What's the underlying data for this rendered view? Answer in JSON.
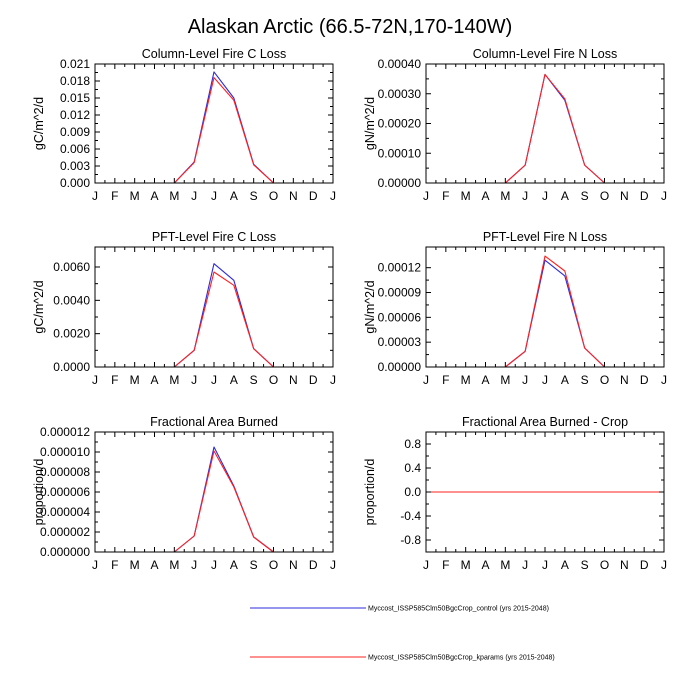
{
  "figure": {
    "title": "Alaskan Arctic (66.5-72N,170-140W)"
  },
  "colors": {
    "control": "#2b2bdc",
    "kparams": "#ff2020",
    "axes": "#000000",
    "background": "#ffffff"
  },
  "legend": {
    "entries": [
      {
        "name": "Myccost_ISSP585Clm50BgcCrop_control (yrs 2015-2048)",
        "color_key": "control"
      },
      {
        "name": "Myccost_ISSP585Clm50BgcCrop_kparams (yrs 2015-2048)",
        "color_key": "kparams"
      }
    ]
  },
  "chart_data": [
    {
      "type": "line",
      "title": "Column-Level Fire C Loss",
      "ylabel": "gC/m^2/d",
      "xlabel": "",
      "categories": [
        "J",
        "F",
        "M",
        "A",
        "M",
        "J",
        "J",
        "A",
        "S",
        "O",
        "N",
        "D",
        "J"
      ],
      "ylim": [
        0,
        0.021
      ],
      "yticks": [
        0,
        0.003,
        0.006,
        0.009,
        0.012,
        0.015,
        0.018,
        0.021
      ],
      "ytick_labels": [
        "0.000",
        "0.003",
        "0.006",
        "0.009",
        "0.012",
        "0.015",
        "0.018",
        "0.021"
      ],
      "series": [
        {
          "name": "Myccost_ISSP585Clm50BgcCrop_control (yrs 2015-2048)",
          "color_key": "control",
          "values": [
            0,
            0,
            0,
            0,
            0,
            0.0037,
            0.0196,
            0.015,
            0.0033,
            0,
            0,
            0,
            0
          ]
        },
        {
          "name": "Myccost_ISSP585Clm50BgcCrop_kparams (yrs 2015-2048)",
          "color_key": "kparams",
          "values": [
            0,
            0,
            0,
            0,
            0,
            0.0036,
            0.0186,
            0.0146,
            0.0032,
            0,
            0,
            0,
            0
          ]
        }
      ]
    },
    {
      "type": "line",
      "title": "Column-Level Fire N Loss",
      "ylabel": "gN/m^2/d",
      "xlabel": "",
      "categories": [
        "J",
        "F",
        "M",
        "A",
        "M",
        "J",
        "J",
        "A",
        "S",
        "O",
        "N",
        "D",
        "J"
      ],
      "ylim": [
        0,
        0.0004
      ],
      "yticks": [
        0,
        0.0001,
        0.0002,
        0.0003,
        0.0004
      ],
      "ytick_labels": [
        "0.00000",
        "0.00010",
        "0.00020",
        "0.00030",
        "0.00040"
      ],
      "series": [
        {
          "name": "Myccost_ISSP585Clm50BgcCrop_control (yrs 2015-2048)",
          "color_key": "control",
          "values": [
            0,
            0,
            0,
            0,
            0,
            6e-05,
            0.000365,
            0.000278,
            6e-05,
            0,
            0,
            0,
            0
          ]
        },
        {
          "name": "Myccost_ISSP585Clm50BgcCrop_kparams (yrs 2015-2048)",
          "color_key": "kparams",
          "values": [
            0,
            0,
            0,
            0,
            0,
            6e-05,
            0.000365,
            0.000283,
            6e-05,
            0,
            0,
            0,
            0
          ]
        }
      ]
    },
    {
      "type": "line",
      "title": "PFT-Level Fire C Loss",
      "ylabel": "gC/m^2/d",
      "xlabel": "",
      "categories": [
        "J",
        "F",
        "M",
        "A",
        "M",
        "J",
        "J",
        "A",
        "S",
        "O",
        "N",
        "D",
        "J"
      ],
      "ylim": [
        0,
        0.0072
      ],
      "yticks": [
        0,
        0.002,
        0.004,
        0.006
      ],
      "ytick_labels": [
        "0.0000",
        "0.0020",
        "0.0040",
        "0.0060"
      ],
      "series": [
        {
          "name": "Myccost_ISSP585Clm50BgcCrop_control (yrs 2015-2048)",
          "color_key": "control",
          "values": [
            0,
            0,
            0,
            0,
            0,
            0.001,
            0.0062,
            0.0052,
            0.0011,
            0,
            0,
            0,
            0
          ]
        },
        {
          "name": "Myccost_ISSP585Clm50BgcCrop_kparams (yrs 2015-2048)",
          "color_key": "kparams",
          "values": [
            0,
            0,
            0,
            0,
            0,
            0.001,
            0.0057,
            0.0049,
            0.0011,
            0,
            0,
            0,
            0
          ]
        }
      ]
    },
    {
      "type": "line",
      "title": "PFT-Level Fire N Loss",
      "ylabel": "gN/m^2/d",
      "xlabel": "",
      "categories": [
        "J",
        "F",
        "M",
        "A",
        "M",
        "J",
        "J",
        "A",
        "S",
        "O",
        "N",
        "D",
        "J"
      ],
      "ylim": [
        0,
        0.000145
      ],
      "yticks": [
        0,
        3e-05,
        6e-05,
        9e-05,
        0.00012
      ],
      "ytick_labels": [
        "0.00000",
        "0.00003",
        "0.00006",
        "0.00009",
        "0.00012"
      ],
      "series": [
        {
          "name": "Myccost_ISSP585Clm50BgcCrop_control (yrs 2015-2048)",
          "color_key": "control",
          "values": [
            0,
            0,
            0,
            0,
            0,
            1.9e-05,
            0.000129,
            0.00011,
            2.3e-05,
            0,
            0,
            0,
            0
          ]
        },
        {
          "name": "Myccost_ISSP585Clm50BgcCrop_kparams (yrs 2015-2048)",
          "color_key": "kparams",
          "values": [
            0,
            0,
            0,
            0,
            0,
            1.9e-05,
            0.000134,
            0.000116,
            2.3e-05,
            0,
            0,
            0,
            0
          ]
        }
      ]
    },
    {
      "type": "line",
      "title": "Fractional Area Burned",
      "ylabel": "proportion/d",
      "xlabel": "",
      "categories": [
        "J",
        "F",
        "M",
        "A",
        "M",
        "J",
        "J",
        "A",
        "S",
        "O",
        "N",
        "D",
        "J"
      ],
      "ylim": [
        0,
        1.2e-05
      ],
      "yticks": [
        0,
        2e-06,
        4e-06,
        6e-06,
        8e-06,
        1e-05,
        1.2e-05
      ],
      "ytick_labels": [
        "0.000000",
        "0.000002",
        "0.000004",
        "0.000006",
        "0.000008",
        "0.000010",
        "0.000012"
      ],
      "series": [
        {
          "name": "Myccost_ISSP585Clm50BgcCrop_control (yrs 2015-2048)",
          "color_key": "control",
          "values": [
            0,
            0,
            0,
            0,
            0,
            1.6e-06,
            1.05e-05,
            6.6e-06,
            1.5e-06,
            0,
            0,
            0,
            0
          ]
        },
        {
          "name": "Myccost_ISSP585Clm50BgcCrop_kparams (yrs 2015-2048)",
          "color_key": "kparams",
          "values": [
            0,
            0,
            0,
            0,
            0,
            1.6e-06,
            1.01e-05,
            6.5e-06,
            1.5e-06,
            0,
            0,
            0,
            0
          ]
        }
      ]
    },
    {
      "type": "line",
      "title": "Fractional Area Burned - Crop",
      "ylabel": "proportion/d",
      "xlabel": "",
      "categories": [
        "J",
        "F",
        "M",
        "A",
        "M",
        "J",
        "J",
        "A",
        "S",
        "O",
        "N",
        "D",
        "J"
      ],
      "ylim": [
        -1.0,
        1.0
      ],
      "yticks": [
        -0.8,
        -0.4,
        0,
        0.4,
        0.8
      ],
      "ytick_labels": [
        "-0.8",
        "-0.4",
        "0.0",
        "0.4",
        "0.8"
      ],
      "series": [
        {
          "name": "Myccost_ISSP585Clm50BgcCrop_control (yrs 2015-2048)",
          "color_key": "control",
          "values": [
            0,
            0,
            0,
            0,
            0,
            0,
            0,
            0,
            0,
            0,
            0,
            0,
            0
          ]
        },
        {
          "name": "Myccost_ISSP585Clm50BgcCrop_kparams (yrs 2015-2048)",
          "color_key": "kparams",
          "values": [
            0,
            0,
            0,
            0,
            0,
            0,
            0,
            0,
            0,
            0,
            0,
            0,
            0
          ]
        }
      ]
    }
  ]
}
